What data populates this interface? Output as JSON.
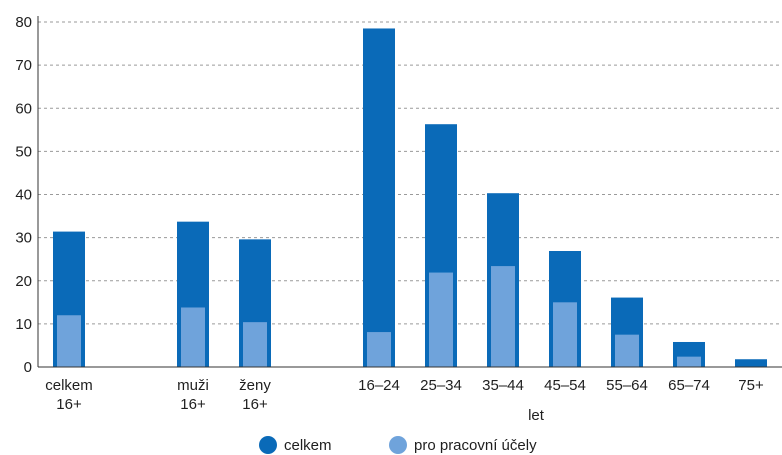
{
  "chart_data": {
    "type": "bar",
    "categories": [
      [
        "celkem",
        "16+"
      ],
      [
        "",
        ""
      ],
      [
        "muži",
        "16+"
      ],
      [
        "ženy",
        "16+"
      ],
      [
        "",
        ""
      ],
      [
        "16–24",
        ""
      ],
      [
        "25–34",
        ""
      ],
      [
        "35–44",
        ""
      ],
      [
        "45–54",
        ""
      ],
      [
        "55–64",
        ""
      ],
      [
        "65–74",
        ""
      ],
      [
        "75+",
        ""
      ]
    ],
    "series": [
      {
        "name": "celkem",
        "color": "#0a6ab8",
        "values": [
          31.4,
          null,
          33.7,
          29.6,
          null,
          78.5,
          56.3,
          40.3,
          26.9,
          16.1,
          5.8,
          1.8
        ]
      },
      {
        "name": "pro pracovní účely",
        "color": "#6fa3db",
        "values": [
          12.0,
          null,
          13.8,
          10.4,
          null,
          8.1,
          21.9,
          23.4,
          15.0,
          7.5,
          2.4,
          null
        ]
      }
    ],
    "y_ticks": [
      "0",
      "10",
      "20",
      "30",
      "40",
      "50",
      "60",
      "70",
      "80"
    ],
    "ylim": [
      0,
      80
    ],
    "xlabel": "let",
    "ylabel": "",
    "grid": true,
    "legend": "bottom"
  }
}
